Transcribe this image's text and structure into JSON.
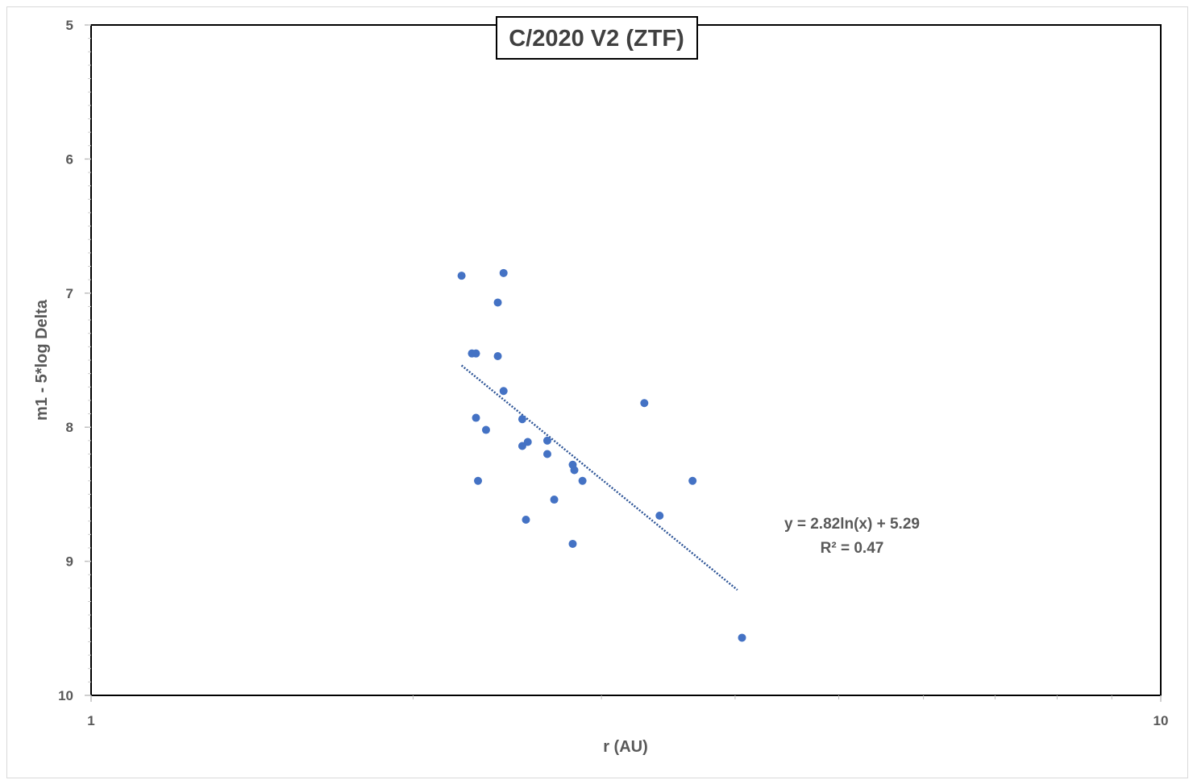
{
  "chart_data": {
    "type": "scatter",
    "title": "C/2020 V2 (ZTF)",
    "xlabel": "r (AU)",
    "ylabel": "m1 - 5*log Delta",
    "x_scale": "log",
    "xlim": [
      1,
      10
    ],
    "ylim": [
      5,
      10
    ],
    "y_inverted": true,
    "x_tick_labels": [
      "1",
      "10"
    ],
    "y_tick_labels": [
      "5",
      "6",
      "7",
      "8",
      "9",
      "10"
    ],
    "grid": false,
    "legend": "none",
    "marker_color": "#4472c4",
    "trendline_color": "#2e5597",
    "points": [
      {
        "x": 2.22,
        "y": 6.87
      },
      {
        "x": 2.43,
        "y": 6.85
      },
      {
        "x": 2.4,
        "y": 7.07
      },
      {
        "x": 2.27,
        "y": 7.45
      },
      {
        "x": 2.29,
        "y": 7.45
      },
      {
        "x": 2.4,
        "y": 7.47
      },
      {
        "x": 2.43,
        "y": 7.73
      },
      {
        "x": 2.29,
        "y": 7.93
      },
      {
        "x": 2.34,
        "y": 8.02
      },
      {
        "x": 2.53,
        "y": 7.94
      },
      {
        "x": 2.53,
        "y": 8.14
      },
      {
        "x": 2.56,
        "y": 8.11
      },
      {
        "x": 2.67,
        "y": 8.1
      },
      {
        "x": 2.67,
        "y": 8.2
      },
      {
        "x": 2.3,
        "y": 8.4
      },
      {
        "x": 2.71,
        "y": 8.54
      },
      {
        "x": 2.55,
        "y": 8.69
      },
      {
        "x": 2.82,
        "y": 8.28
      },
      {
        "x": 2.83,
        "y": 8.32
      },
      {
        "x": 2.88,
        "y": 8.4
      },
      {
        "x": 2.82,
        "y": 8.87
      },
      {
        "x": 3.29,
        "y": 7.82
      },
      {
        "x": 3.4,
        "y": 8.66
      },
      {
        "x": 3.65,
        "y": 8.4
      },
      {
        "x": 4.06,
        "y": 9.57
      }
    ],
    "trendline": {
      "type": "logarithmic",
      "a": 2.82,
      "b": 5.29,
      "x_range": [
        2.22,
        4.02
      ],
      "equation": "y = 2.82ln(x) + 5.29",
      "r_squared": "R² = 0.47"
    }
  }
}
